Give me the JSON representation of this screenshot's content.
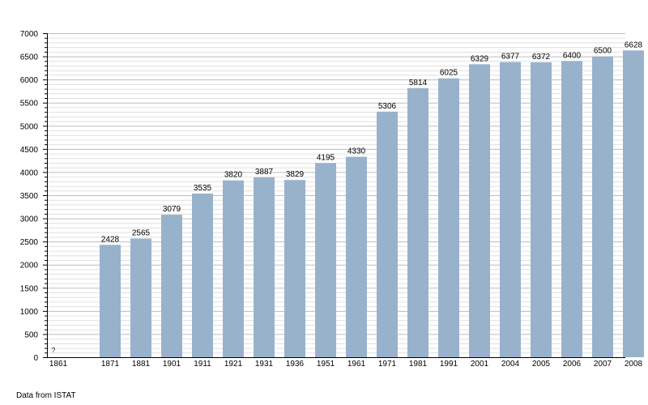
{
  "chart_data": {
    "type": "bar",
    "categories": [
      "1861",
      "1871",
      "1881",
      "1901",
      "1911",
      "1921",
      "1931",
      "1936",
      "1951",
      "1961",
      "1971",
      "1981",
      "1991",
      "2001",
      "2004",
      "2005",
      "2006",
      "2007",
      "2008"
    ],
    "values": [
      null,
      2428,
      2565,
      3079,
      3535,
      3820,
      3887,
      3829,
      4195,
      4330,
      5306,
      5814,
      6025,
      6329,
      6377,
      6372,
      6400,
      6500,
      6628
    ],
    "value_labels": [
      "?",
      "2428",
      "2565",
      "3079",
      "3535",
      "3820",
      "3887",
      "3829",
      "4195",
      "4330",
      "5306",
      "5814",
      "6025",
      "6329",
      "6377",
      "6372",
      "6400",
      "6500",
      "6628"
    ],
    "ylim": [
      0,
      7000
    ],
    "yticks": [
      0,
      500,
      1000,
      1500,
      2000,
      2500,
      3000,
      3500,
      4000,
      4500,
      5000,
      5500,
      6000,
      6500,
      7000
    ],
    "grid": true,
    "bar_color": "#99b2cc",
    "xlabel": "",
    "ylabel": ""
  },
  "source_note": "Data from ISTAT"
}
